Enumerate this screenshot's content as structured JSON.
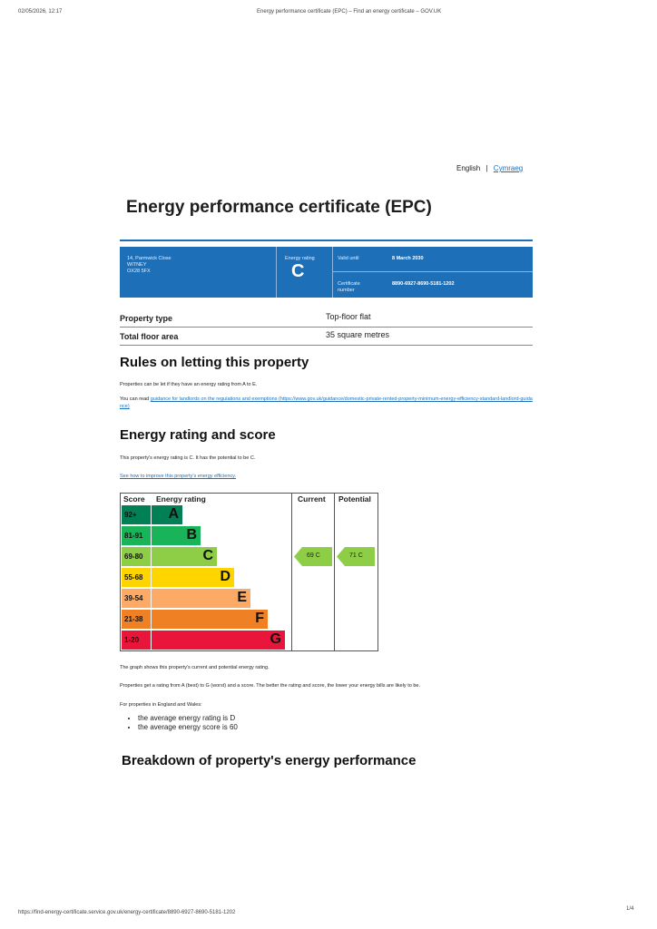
{
  "header": {
    "datetime": "02/05/2026, 12:17",
    "page_title": "Energy performance certificate (EPC) – Find an energy certificate – GOV.UK"
  },
  "language": {
    "english": "English",
    "separator": "|",
    "welsh": "Cymraeg"
  },
  "title": "Energy performance certificate (EPC)",
  "summary": {
    "address": [
      "14, Parmwick Close",
      "WITNEY",
      "OX28 5FX"
    ],
    "rating_label": "Energy rating",
    "rating": "C",
    "valid_label": "Valid until",
    "valid_until": "8 March 2030",
    "certificate_label": "Certificate number",
    "certificate_number": "8890-6927-8690-5181-1202"
  },
  "property": {
    "rows": [
      [
        "Property type",
        "Top-floor flat"
      ],
      [
        "Total floor area",
        "35 square metres"
      ]
    ]
  },
  "letting": {
    "heading": "Rules on letting this property",
    "text": "Properties can be let if they have an energy rating from A to E.",
    "guidance_prefix": "You can read",
    "guidance_link": "guidance for landlords on the regulations and exemptions (https://www.gov.uk/guidance/domestic-private-rented-property-minimum-energy-efficiency-standard-landlord-guidance)"
  },
  "rating_section": {
    "heading": "Energy rating and score",
    "text": "This property's energy rating is C. It has the potential to be C.",
    "improve_link": "See how to improve this property's energy efficiency.",
    "table": {
      "headers": [
        "Score",
        "Energy rating",
        "Current",
        "Potential"
      ],
      "bands": [
        {
          "range": "92+",
          "letter": "A",
          "color": "#008054"
        },
        {
          "range": "81-91",
          "letter": "B",
          "color": "#19b459"
        },
        {
          "range": "69-80",
          "letter": "C",
          "color": "#8dce46"
        },
        {
          "range": "55-68",
          "letter": "D",
          "color": "#ffd500"
        },
        {
          "range": "39-54",
          "letter": "E",
          "color": "#fcaa65"
        },
        {
          "range": "21-38",
          "letter": "F",
          "color": "#ef8023"
        },
        {
          "range": "1-20",
          "letter": "G",
          "color": "#e9153b"
        }
      ],
      "current": "69 C",
      "potential": "71 C"
    },
    "graph_note": "The graph shows this property's current and potential energy rating.",
    "explanation": "Properties get a rating from A (best) to G (worst) and a score. The better the rating and score, the lower your energy bills are likely to be.",
    "average_intro": "For properties in England and Wales:",
    "averages": [
      "the average energy rating is D",
      "the average energy score is 60"
    ]
  },
  "breakdown": {
    "heading": "Breakdown of property's energy performance"
  },
  "footer": {
    "url": "https://find-energy-certificate.service.gov.uk/energy-certificate/8890-6927-8690-5181-1202",
    "page": "1/4"
  }
}
